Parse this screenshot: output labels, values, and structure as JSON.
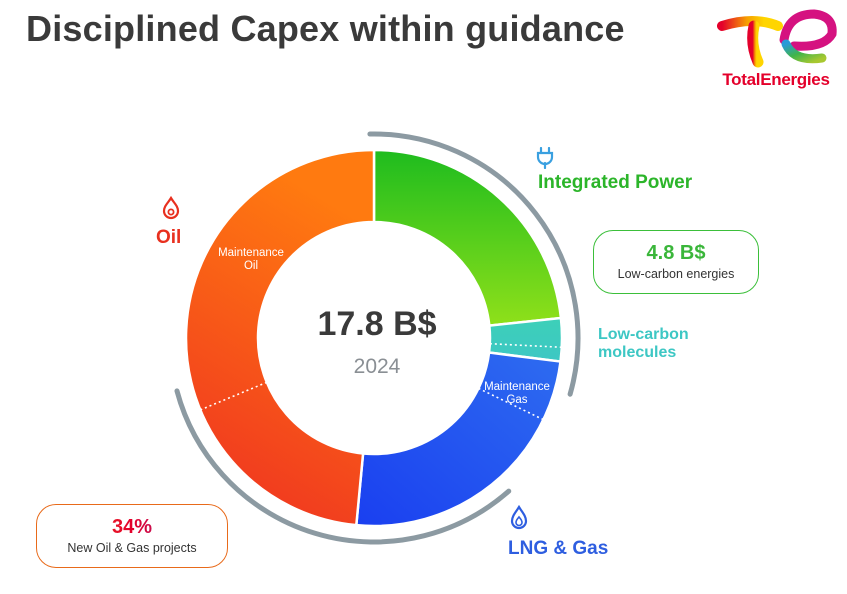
{
  "title": "Disciplined Capex within guidance",
  "brand": {
    "name": "TotalEnergies",
    "color": "#e4002b"
  },
  "center": {
    "value": "17.8 B$",
    "year": "2024"
  },
  "chart_data": {
    "type": "donut",
    "total": 17.8,
    "unit": "B$",
    "segments": [
      {
        "name": "Integrated Power",
        "share": 0.233,
        "color_from": "#1ebc1e",
        "color_to": "#8fe01a"
      },
      {
        "name": "Low-carbon molecules",
        "share": 0.037,
        "color_from": "#3dd0b8",
        "color_to": "#3dc7c4"
      },
      {
        "name": "LNG & Gas",
        "share": 0.245,
        "color_from": "#1a3ff0",
        "color_to": "#2e6cf0"
      },
      {
        "name": "Oil",
        "share": 0.485,
        "color_from": "#ee2e22",
        "color_to": "#ff7a10"
      }
    ],
    "sub_segments": [
      {
        "parent": "Oil",
        "name": "Maintenance Oil"
      },
      {
        "parent": "LNG & Gas",
        "name": "Maintenance Gas"
      }
    ]
  },
  "labels": {
    "oil": "Oil",
    "integrated_power": "Integrated Power",
    "low_carbon_molecules_1": "Low-carbon",
    "low_carbon_molecules_2": "molecules",
    "lng_gas": "LNG & Gas",
    "maintenance_oil_1": "Maintenance",
    "maintenance_oil_2": "Oil",
    "maintenance_gas_1": "Maintenance",
    "maintenance_gas_2": "Gas"
  },
  "callouts": {
    "low_carbon": {
      "value": "4.8 B$",
      "text": "Low-carbon energies",
      "color": "#3bbf3a"
    },
    "new_oil_gas": {
      "value": "34%",
      "text": "New Oil & Gas projects",
      "color": "#e86a1a"
    }
  },
  "icons": {
    "oil": "flame-icon",
    "power": "plug-icon",
    "lng": "flame-icon"
  }
}
